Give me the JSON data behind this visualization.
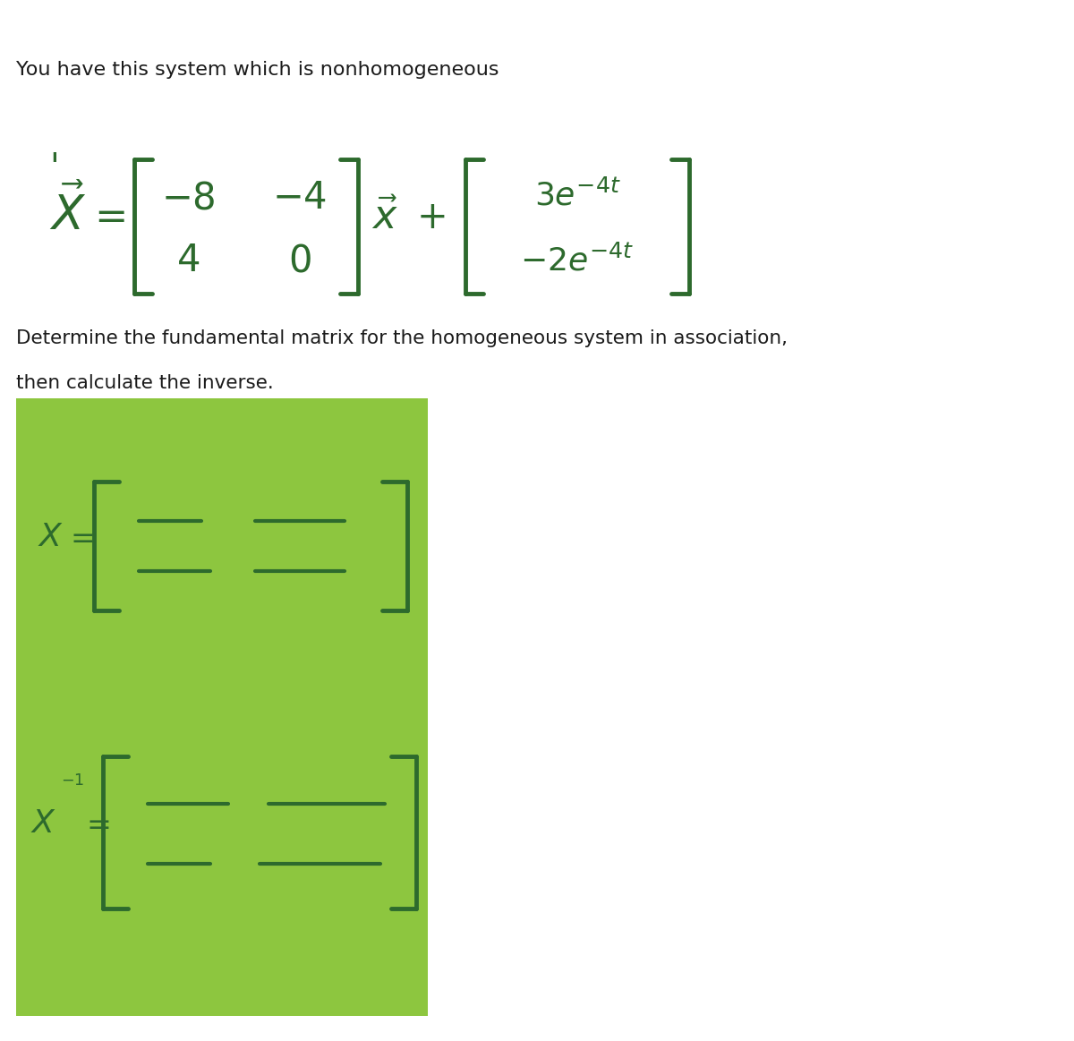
{
  "bg_color": "#ffffff",
  "green_box_color": "#8dc63f",
  "dark_green": "#2d6a2d",
  "text_color": "#1a1a1a",
  "top_text": "You have this system which is nonhomogeneous",
  "bottom_text_line1": "Determine the fundamental matrix for the homogeneous system in association,",
  "bottom_text_line2": "then calculate the inverse.",
  "fig_width": 12.0,
  "fig_height": 11.63
}
